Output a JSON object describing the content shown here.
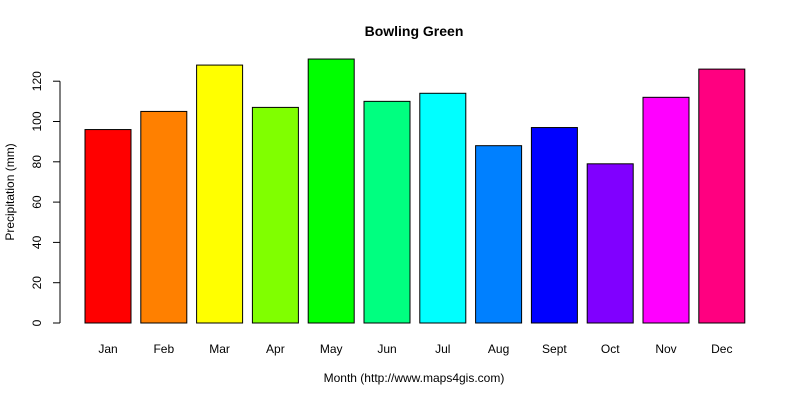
{
  "chart_data": {
    "type": "bar",
    "title": "Bowling Green",
    "xlabel": "Month (http://www.maps4gis.com)",
    "ylabel": "Precipitation (mm)",
    "ylim": [
      0,
      130
    ],
    "yticks": [
      0,
      20,
      40,
      60,
      80,
      100,
      120
    ],
    "grid": false,
    "categories": [
      "Jan",
      "Feb",
      "Mar",
      "Apr",
      "May",
      "Jun",
      "Jul",
      "Aug",
      "Sept",
      "Oct",
      "Nov",
      "Dec"
    ],
    "values": [
      96,
      105,
      128,
      107,
      131,
      110,
      114,
      88,
      97,
      79,
      112,
      126
    ],
    "colors": [
      "#FF0000",
      "#FF8000",
      "#FFFF00",
      "#80FF00",
      "#00FF00",
      "#00FF80",
      "#00FFFF",
      "#0080FF",
      "#0000FF",
      "#8000FF",
      "#FF00FF",
      "#FF0080"
    ]
  }
}
